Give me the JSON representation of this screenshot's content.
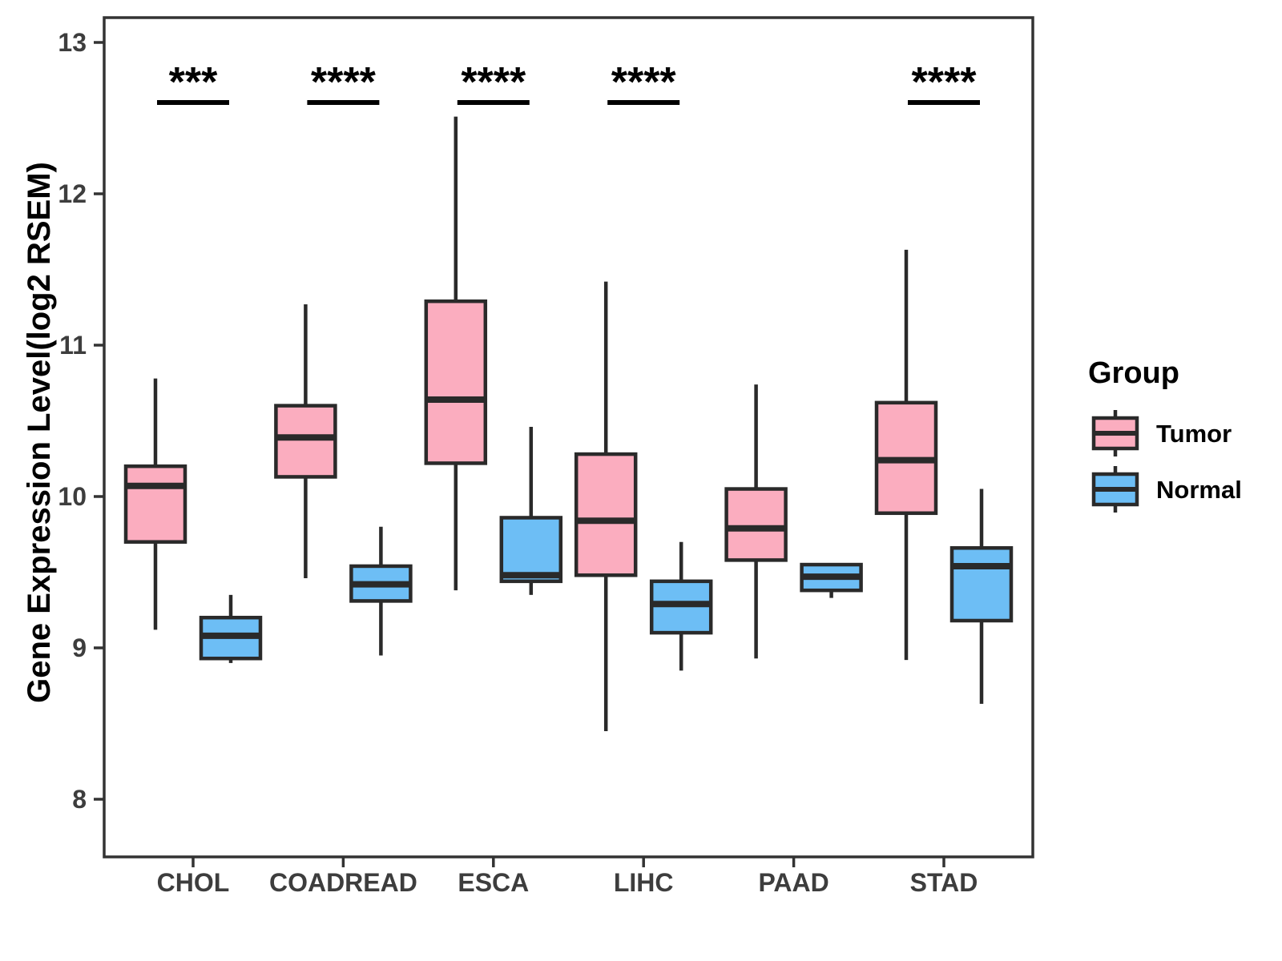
{
  "chart_data": {
    "type": "boxplot",
    "title": "",
    "xlabel": "",
    "ylabel": "Gene Expression Level(log2 RSEM)",
    "yticks": [
      8,
      9,
      10,
      11,
      12,
      13
    ],
    "ylim": [
      7.6,
      13.2
    ],
    "grid": false,
    "categories": [
      "CHOL",
      "COADREAD",
      "ESCA",
      "LIHC",
      "PAAD",
      "STAD"
    ],
    "legend": {
      "title": "Group",
      "position": "right",
      "entries": [
        {
          "label": "Tumor",
          "color": "#FBADBF"
        },
        {
          "label": "Normal",
          "color": "#6DBEF5"
        }
      ]
    },
    "significance": [
      {
        "category": "CHOL",
        "label": "***"
      },
      {
        "category": "COADREAD",
        "label": "****"
      },
      {
        "category": "ESCA",
        "label": "****"
      },
      {
        "category": "LIHC",
        "label": "****"
      },
      {
        "category": "PAAD",
        "label": ""
      },
      {
        "category": "STAD",
        "label": "****"
      }
    ],
    "series": [
      {
        "name": "Tumor",
        "color": "#FBADBF",
        "boxes": [
          {
            "category": "CHOL",
            "whisker_low": 9.12,
            "q1": 9.7,
            "median": 10.07,
            "q3": 10.2,
            "whisker_high": 10.78
          },
          {
            "category": "COADREAD",
            "whisker_low": 9.46,
            "q1": 10.13,
            "median": 10.39,
            "q3": 10.6,
            "whisker_high": 11.27
          },
          {
            "category": "ESCA",
            "whisker_low": 9.38,
            "q1": 10.22,
            "median": 10.64,
            "q3": 11.29,
            "whisker_high": 12.51
          },
          {
            "category": "LIHC",
            "whisker_low": 8.45,
            "q1": 9.48,
            "median": 9.84,
            "q3": 10.28,
            "whisker_high": 11.42
          },
          {
            "category": "PAAD",
            "whisker_low": 8.93,
            "q1": 9.58,
            "median": 9.79,
            "q3": 10.05,
            "whisker_high": 10.74
          },
          {
            "category": "STAD",
            "whisker_low": 8.92,
            "q1": 9.89,
            "median": 10.24,
            "q3": 10.62,
            "whisker_high": 11.63
          }
        ]
      },
      {
        "name": "Normal",
        "color": "#6DBEF5",
        "boxes": [
          {
            "category": "CHOL",
            "whisker_low": 8.9,
            "q1": 8.93,
            "median": 9.08,
            "q3": 9.2,
            "whisker_high": 9.35
          },
          {
            "category": "COADREAD",
            "whisker_low": 8.95,
            "q1": 9.31,
            "median": 9.42,
            "q3": 9.54,
            "whisker_high": 9.8
          },
          {
            "category": "ESCA",
            "whisker_low": 9.35,
            "q1": 9.44,
            "median": 9.48,
            "q3": 9.86,
            "whisker_high": 10.46
          },
          {
            "category": "LIHC",
            "whisker_low": 8.85,
            "q1": 9.1,
            "median": 9.29,
            "q3": 9.44,
            "whisker_high": 9.7
          },
          {
            "category": "PAAD",
            "whisker_low": 9.33,
            "q1": 9.38,
            "median": 9.47,
            "q3": 9.55,
            "whisker_high": 9.55
          },
          {
            "category": "STAD",
            "whisker_low": 8.63,
            "q1": 9.18,
            "median": 9.54,
            "q3": 9.66,
            "whisker_high": 10.05
          }
        ]
      }
    ],
    "colors": {
      "box_stroke": "#2A2A2A",
      "axis_stroke": "#333333",
      "tick_text": "#3D3D3D",
      "annotation": "#000000",
      "background": "#FFFFFF"
    }
  }
}
